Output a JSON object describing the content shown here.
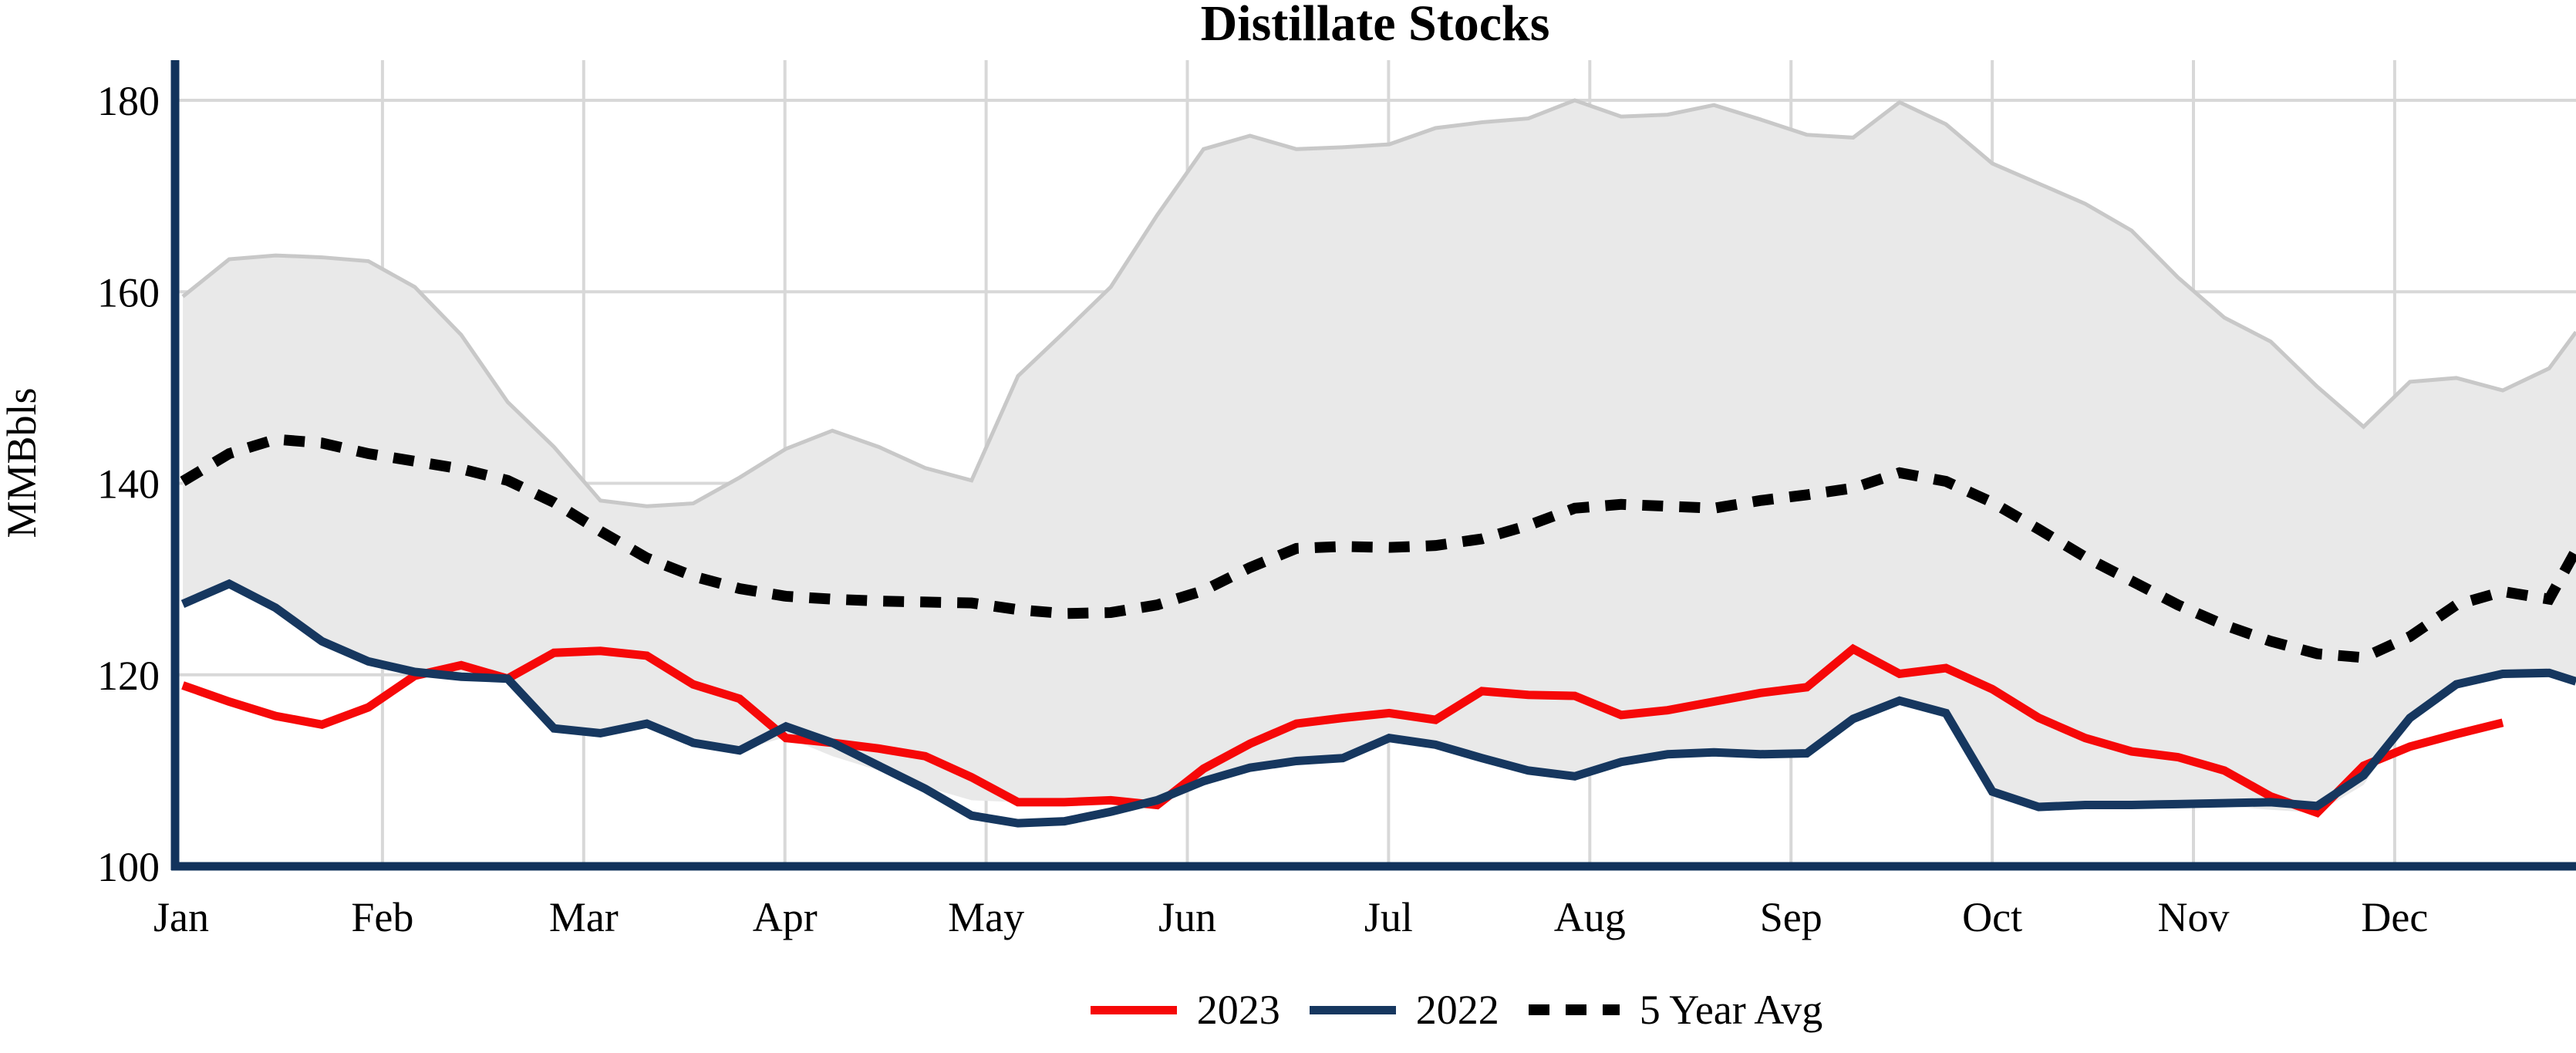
{
  "title": "Distillate Stocks",
  "y_axis": {
    "label": "MMBbls",
    "ticks": [
      100,
      120,
      140,
      160,
      180
    ]
  },
  "x_axis": {
    "months": [
      "Jan",
      "Feb",
      "Mar",
      "Apr",
      "May",
      "Jun",
      "Jul",
      "Aug",
      "Sep",
      "Oct",
      "Nov",
      "Dec"
    ]
  },
  "legend": {
    "items": [
      {
        "label": "2023",
        "color": "#f60808",
        "style": "solid"
      },
      {
        "label": "2022",
        "color": "#16375f",
        "style": "solid"
      },
      {
        "label": "5 Year Avg",
        "color": "#000000",
        "style": "dotted"
      }
    ]
  },
  "colors": {
    "red": "#f60808",
    "navy": "#16375f",
    "black": "#000000",
    "band_fill": "#e9e9e9",
    "band_edge": "#c8c8c8",
    "gridline": "#d8d8d8",
    "axis": "#12335c"
  },
  "chart_data": {
    "type": "line",
    "title": "Distillate Stocks",
    "ylabel": "MMBbls",
    "xlabel": "",
    "ylim": [
      100,
      184.2
    ],
    "x_unit": "weekly points, Jan through Dec",
    "grid": true,
    "legend_position": "bottom-center",
    "series": [
      {
        "name": "2023",
        "color": "#f60808",
        "style": "solid",
        "values": [
          118.9,
          117.2,
          115.7,
          114.8,
          116.6,
          119.9,
          121.0,
          119.6,
          122.3,
          122.5,
          122.0,
          119.0,
          117.5,
          113.4,
          112.9,
          112.3,
          111.5,
          109.3,
          106.7,
          106.7,
          106.9,
          106.4,
          110.2,
          112.8,
          114.9,
          115.5,
          116.0,
          115.3,
          118.3,
          117.9,
          117.8,
          115.8,
          116.3,
          117.2,
          118.1,
          118.7,
          122.7,
          120.1,
          120.7,
          118.5,
          115.5,
          113.4,
          112.0,
          111.4,
          110.0,
          107.3,
          105.6,
          110.5,
          112.5,
          113.8,
          115.0
        ]
      },
      {
        "name": "2022",
        "color": "#16375f",
        "style": "solid",
        "values": [
          127.4,
          129.5,
          127.0,
          123.5,
          121.4,
          120.3,
          119.8,
          119.6,
          114.4,
          113.9,
          114.9,
          112.9,
          112.1,
          114.6,
          112.9,
          110.5,
          108.1,
          105.3,
          104.5,
          104.7,
          105.7,
          106.9,
          108.9,
          110.3,
          111.0,
          111.3,
          113.4,
          112.7,
          111.3,
          110.0,
          109.4,
          110.9,
          111.7,
          111.9,
          111.7,
          111.8,
          115.4,
          117.3,
          116.0,
          107.8,
          106.2,
          106.4,
          106.4,
          106.5,
          106.6,
          106.7,
          106.3,
          109.5,
          115.5,
          119.0,
          120.1,
          120.2,
          119.3
        ]
      },
      {
        "name": "5 Year Avg",
        "color": "#000000",
        "style": "dotted",
        "values": [
          140.2,
          143.1,
          144.6,
          144.2,
          143.1,
          142.3,
          141.5,
          140.3,
          138.0,
          135.0,
          132.2,
          130.3,
          129.0,
          128.2,
          127.9,
          127.7,
          127.6,
          127.5,
          126.8,
          126.4,
          126.5,
          127.3,
          128.8,
          131.2,
          133.2,
          133.4,
          133.3,
          133.5,
          134.2,
          135.6,
          137.4,
          137.8,
          137.6,
          137.4,
          138.2,
          138.8,
          139.5,
          141.1,
          140.2,
          138.0,
          135.2,
          132.3,
          129.8,
          127.3,
          125.2,
          123.5,
          122.2,
          121.8,
          124.0,
          127.3,
          128.7,
          127.9,
          133.0
        ]
      }
    ],
    "band": {
      "name": "5-year range",
      "fill": "#e9e9e9",
      "edge": "#c8c8c8",
      "max": [
        159.5,
        163.4,
        163.8,
        163.6,
        163.2,
        160.5,
        155.5,
        148.5,
        143.8,
        138.2,
        137.6,
        137.9,
        140.6,
        143.6,
        145.5,
        143.8,
        141.6,
        140.3,
        151.2,
        155.8,
        160.5,
        168.0,
        174.9,
        176.3,
        174.9,
        175.1,
        175.4,
        177.1,
        177.7,
        178.1,
        180.0,
        178.3,
        178.5,
        179.5,
        178.0,
        176.4,
        176.1,
        179.8,
        177.5,
        173.4,
        171.3,
        169.2,
        166.4,
        161.5,
        157.3,
        154.8,
        150.1,
        145.9,
        150.6,
        151.0,
        149.7,
        152.0,
        155.8
      ],
      "min": [
        127.4,
        129.5,
        127.0,
        123.5,
        121.4,
        120.3,
        119.8,
        119.6,
        114.4,
        113.9,
        114.9,
        112.9,
        112.1,
        113.5,
        111.5,
        110.0,
        108.3,
        106.9,
        106.7,
        106.7,
        106.6,
        106.4,
        108.9,
        110.3,
        111.0,
        111.3,
        113.4,
        112.7,
        111.3,
        110.0,
        109.4,
        110.9,
        111.7,
        111.9,
        111.7,
        111.8,
        115.4,
        117.3,
        116.0,
        107.8,
        106.2,
        106.4,
        106.4,
        106.5,
        106.3,
        105.9,
        105.6,
        108.5,
        115.5,
        119.0,
        120.1,
        120.2,
        119.3
      ]
    }
  }
}
